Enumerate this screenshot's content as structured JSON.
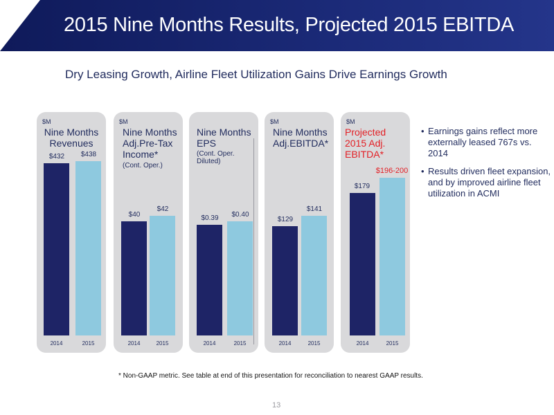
{
  "header": {
    "title": "2015 Nine Months Results, Projected 2015 EBITDA"
  },
  "subtitle": "Dry Leasing Growth, Airline Fleet Utilization Gains Drive Earnings Growth",
  "chart_data": [
    {
      "type": "bar",
      "unit": "$M",
      "title": "Nine Months Revenues",
      "categories": [
        "2014",
        "2015"
      ],
      "values": [
        432,
        438
      ],
      "value_labels": [
        "$432",
        "$438"
      ],
      "ylim": [
        0,
        500
      ]
    },
    {
      "type": "bar",
      "unit": "$M",
      "title": "Nine Months Adj.Pre-Tax Income*",
      "subtitle": "(Cont. Oper.)",
      "categories": [
        "2014",
        "2015"
      ],
      "values": [
        40,
        42
      ],
      "value_labels": [
        "$40",
        "$42"
      ],
      "ylim": [
        0,
        70
      ]
    },
    {
      "type": "bar",
      "unit": "",
      "title": "Nine Months EPS",
      "subtitle": "(Cont. Oper. Diluted)",
      "categories": [
        "2014",
        "2015"
      ],
      "values": [
        0.39,
        0.4
      ],
      "value_labels": [
        "$0.39",
        "$0.40"
      ],
      "ylim": [
        0,
        0.7
      ]
    },
    {
      "type": "bar",
      "unit": "$M",
      "title": "Nine Months Adj.EBITDA*",
      "categories": [
        "2014",
        "2015"
      ],
      "values": [
        129,
        141
      ],
      "value_labels": [
        "$129",
        "$141"
      ],
      "ylim": [
        0,
        235
      ]
    },
    {
      "type": "bar",
      "unit": "$M",
      "title": "Projected 2015 Adj. EBITDA*",
      "categories": [
        "2014",
        "2015"
      ],
      "values": [
        179,
        198
      ],
      "value_labels": [
        "$179",
        "$196-200"
      ],
      "ylim": [
        0,
        250
      ]
    }
  ],
  "bullets": [
    "Earnings gains reflect more externally leased 767s vs. 2014",
    "Results driven fleet expansion, and by improved airline fleet utilization in ACMI"
  ],
  "footnote": "* Non-GAAP metric. See table at end of this presentation for reconciliation to nearest GAAP results.",
  "page_number": "13",
  "colors": {
    "bar_2014": "#1e2466",
    "bar_2015": "#8ec9df",
    "highlight": "#e31e24",
    "header": "#1b2a78"
  }
}
